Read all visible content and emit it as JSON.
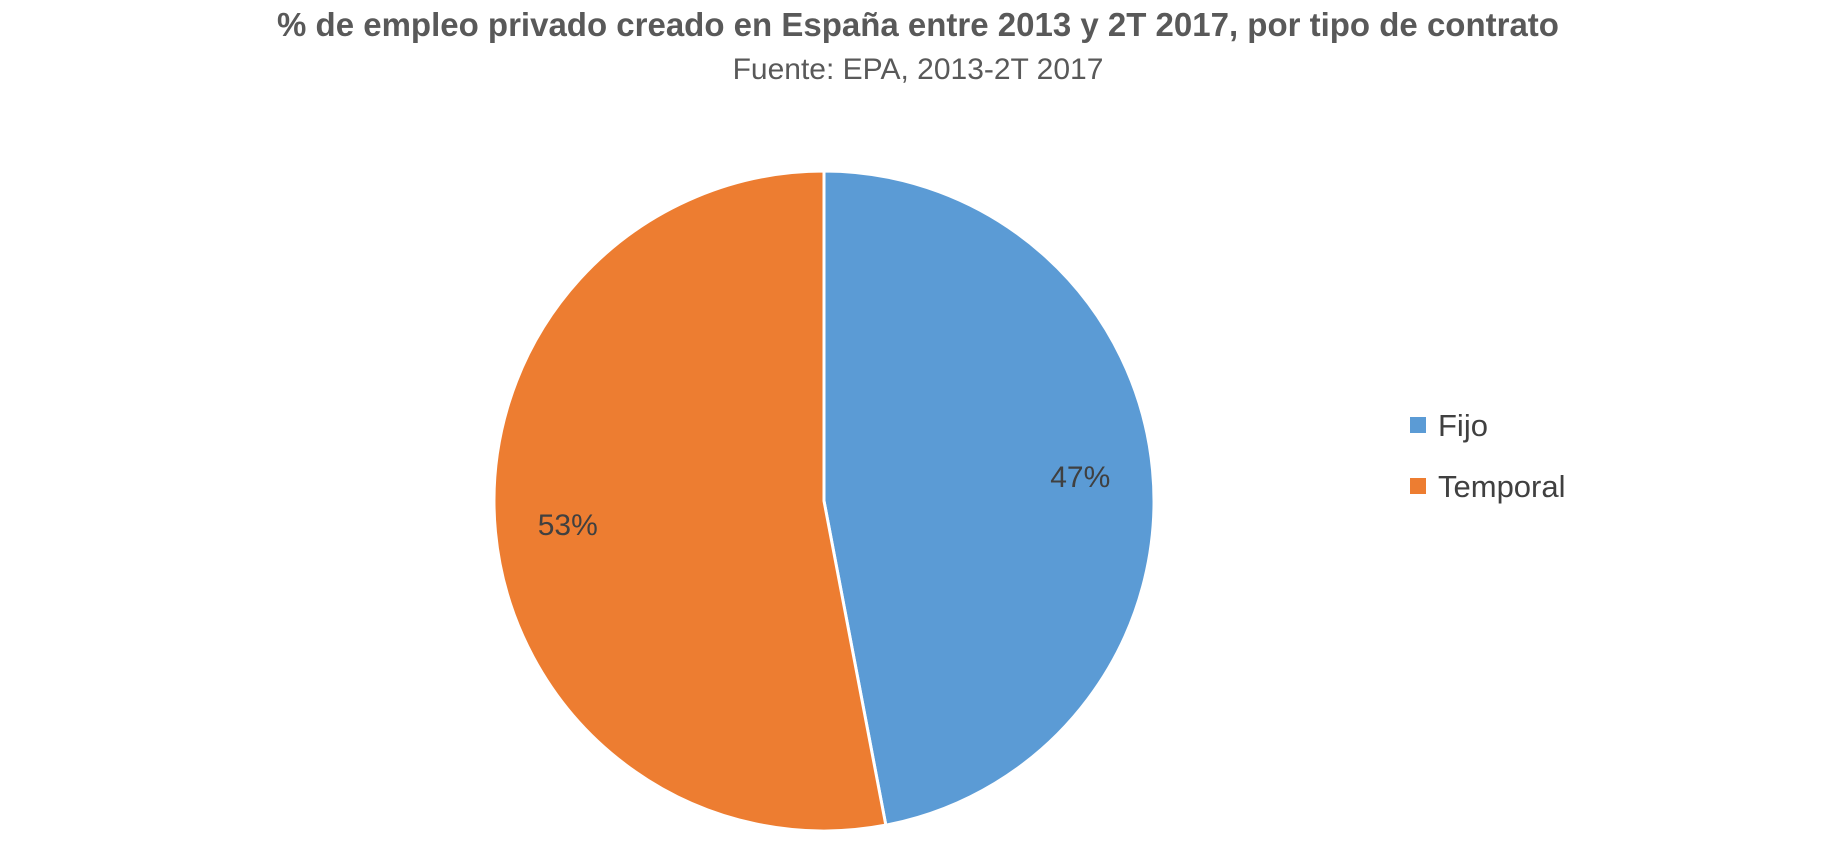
{
  "chart_data": {
    "type": "pie",
    "title": "% de empleo privado creado en España entre 2013 y 2T 2017, por tipo de contrato",
    "subtitle": "Fuente: EPA, 2013-2T 2017",
    "categories": [
      "Fijo",
      "Temporal"
    ],
    "values": [
      47,
      53
    ],
    "data_labels": [
      "47%",
      "53%"
    ],
    "colors": [
      "#5B9BD5",
      "#ED7D31"
    ],
    "start_angle": "12 o'clock",
    "direction": "clockwise",
    "legend": {
      "position": "right",
      "entries": [
        "Fijo",
        "Temporal"
      ]
    }
  }
}
